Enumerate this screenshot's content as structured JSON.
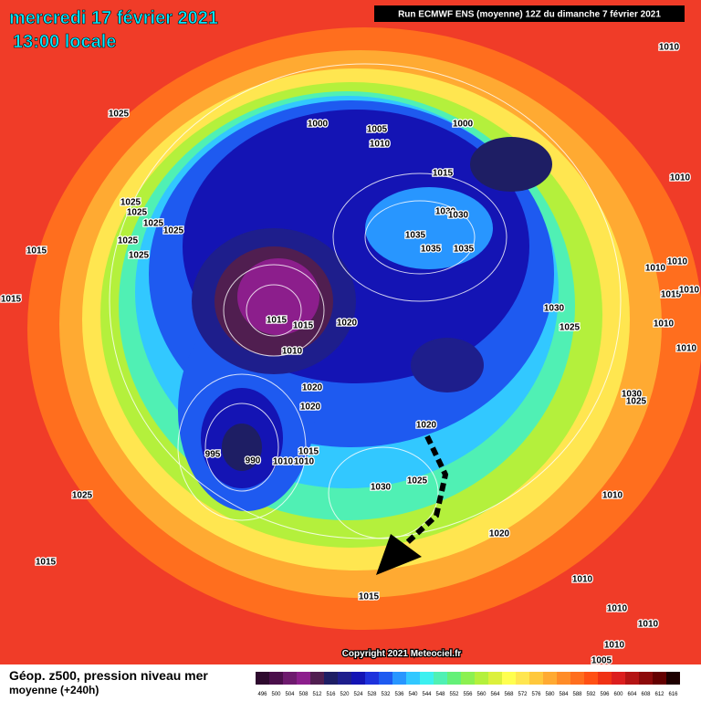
{
  "header": {
    "date": "mercredi 17 février 2021",
    "time": "13:00 locale",
    "run": "Run ECMWF ENS (moyenne) 12Z du dimanche 7 février 2021"
  },
  "isobar_labels": [
    "1025",
    "1000",
    "1005",
    "1010",
    "1000",
    "1015",
    "1010",
    "1025",
    "1025",
    "1025",
    "1025",
    "1025",
    "1025",
    "1015",
    "1015",
    "1030",
    "1030",
    "1035",
    "1035",
    "1035",
    "1010",
    "1010",
    "1010",
    "1015",
    "1010",
    "1010",
    "1010",
    "1030",
    "1025",
    "1015",
    "1015",
    "1020",
    "1010",
    "1020",
    "1020",
    "1030",
    "1025",
    "1020",
    "995",
    "990",
    "1010",
    "1010",
    "1015",
    "1025",
    "1030",
    "1025",
    "1010",
    "1020",
    "1010",
    "1015",
    "1015",
    "1010",
    "1010",
    "1005",
    "1010"
  ],
  "copyright": "Copyright 2021 Meteociel.fr",
  "legend": {
    "title": "Géop. z500, pression niveau mer",
    "subtitle": "moyenne  (+240h)",
    "labels": [
      496,
      500,
      504,
      508,
      512,
      516,
      520,
      524,
      528,
      532,
      536,
      540,
      544,
      548,
      552,
      556,
      560,
      564,
      568,
      572,
      576,
      580,
      584,
      588,
      592,
      596,
      600,
      604,
      608,
      612,
      616
    ],
    "colors": [
      "#2e0a2e",
      "#4b0f4b",
      "#6e1a6e",
      "#8c1e8c",
      "#501e50",
      "#1e1e64",
      "#1e1e8c",
      "#1414b4",
      "#1e32dc",
      "#1e5af0",
      "#2896ff",
      "#32c8ff",
      "#3cf0f0",
      "#50f0b4",
      "#64f078",
      "#8cf050",
      "#b4f03c",
      "#dcf03c",
      "#ffff50",
      "#ffe650",
      "#ffc83c",
      "#ffaa32",
      "#ff8c28",
      "#ff6e1e",
      "#ff5014",
      "#f03214",
      "#dc1e1e",
      "#b41414",
      "#8c0a0a",
      "#640000",
      "#1e0000"
    ]
  }
}
